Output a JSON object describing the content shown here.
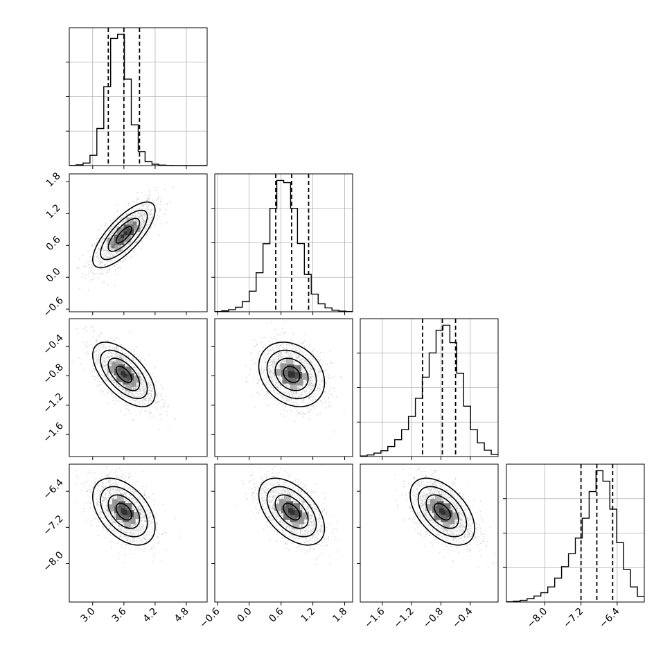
{
  "chart_data": {
    "type": "corner",
    "title": "",
    "grid": true,
    "colors": {
      "line": "#000000",
      "grid": "#b0b0b0",
      "points": "#bdbdbd",
      "background": "#ffffff"
    },
    "parameters": [
      {
        "ylabel": "",
        "xlabel": "",
        "range": [
          2.55,
          5.2
        ],
        "ticks": [
          "3.0",
          "3.6",
          "4.2",
          "4.8"
        ],
        "quantiles": [
          3.3,
          3.6,
          3.9
        ],
        "median": 3.6,
        "sigma": 0.3,
        "rho": 0.75
      },
      {
        "ylabel": "",
        "xlabel": "",
        "range": [
          -0.65,
          1.95
        ],
        "ticks": [
          "−0.6",
          "0.0",
          "0.6",
          "1.2",
          "1.8"
        ],
        "quantiles": [
          0.5,
          0.8,
          1.12
        ],
        "median": 0.8,
        "sigma": 0.31,
        "rho": -0.6
      },
      {
        "ylabel": "",
        "xlabel": "",
        "range": [
          -1.9,
          -0.02
        ],
        "ticks": [
          "−1.6",
          "−1.2",
          "−0.8",
          "−0.4"
        ],
        "quantiles": [
          -1.05,
          -0.78,
          -0.6
        ],
        "median": -0.78,
        "sigma": 0.22,
        "rho": -0.5
      },
      {
        "ylabel": "",
        "xlabel": "",
        "range": [
          -8.85,
          -5.8
        ],
        "ticks": [
          "−8.0",
          "−7.2",
          "−6.4"
        ],
        "quantiles": [
          -7.2,
          -6.85,
          -6.5
        ],
        "median": -6.85,
        "sigma": 0.37,
        "rho": -0.5
      }
    ],
    "histograms": [
      {
        "parameter": 0,
        "bins": [
          2.55,
          2.682,
          2.815,
          2.948,
          3.08,
          3.213,
          3.345,
          3.478,
          3.61,
          3.742,
          3.875,
          4.007,
          4.14,
          4.272,
          4.405,
          4.538,
          4.67,
          4.802,
          4.935,
          5.067,
          5.2
        ],
        "counts": [
          1,
          3,
          11,
          45,
          162,
          345,
          556,
          574,
          378,
          178,
          61,
          17,
          6,
          2,
          1,
          0,
          0,
          0,
          0,
          0
        ]
      },
      {
        "parameter": 1,
        "bins": [
          -0.65,
          -0.52,
          -0.39,
          -0.26,
          -0.13,
          0.0,
          0.13,
          0.26,
          0.39,
          0.52,
          0.65,
          0.78,
          0.91,
          1.04,
          1.17,
          1.3,
          1.43,
          1.56,
          1.69,
          1.82,
          1.95
        ],
        "counts": [
          1,
          4,
          10,
          21,
          47,
          96,
          182,
          317,
          482,
          612,
          602,
          482,
          318,
          174,
          82,
          37,
          18,
          7,
          3,
          1
        ]
      },
      {
        "parameter": 2,
        "bins": [
          -1.9,
          -1.806,
          -1.712,
          -1.618,
          -1.524,
          -1.43,
          -1.336,
          -1.242,
          -1.148,
          -1.054,
          -0.96,
          -0.866,
          -0.772,
          -0.678,
          -0.584,
          -0.49,
          -0.396,
          -0.302,
          -0.208,
          -0.114,
          -0.02
        ],
        "counts": [
          2,
          6,
          13,
          22,
          38,
          64,
          102,
          152,
          221,
          301,
          393,
          479,
          498,
          432,
          316,
          191,
          102,
          52,
          24,
          8
        ]
      },
      {
        "parameter": 3,
        "bins": [
          -8.85,
          -8.697,
          -8.545,
          -8.393,
          -8.24,
          -8.088,
          -7.935,
          -7.782,
          -7.63,
          -7.477,
          -7.325,
          -7.172,
          -7.02,
          -6.868,
          -6.715,
          -6.562,
          -6.41,
          -6.258,
          -6.105,
          -5.952,
          -5.8
        ],
        "counts": [
          1,
          3,
          6,
          12,
          22,
          34,
          55,
          87,
          129,
          176,
          233,
          305,
          402,
          478,
          440,
          338,
          216,
          118,
          55,
          20
        ]
      }
    ]
  }
}
